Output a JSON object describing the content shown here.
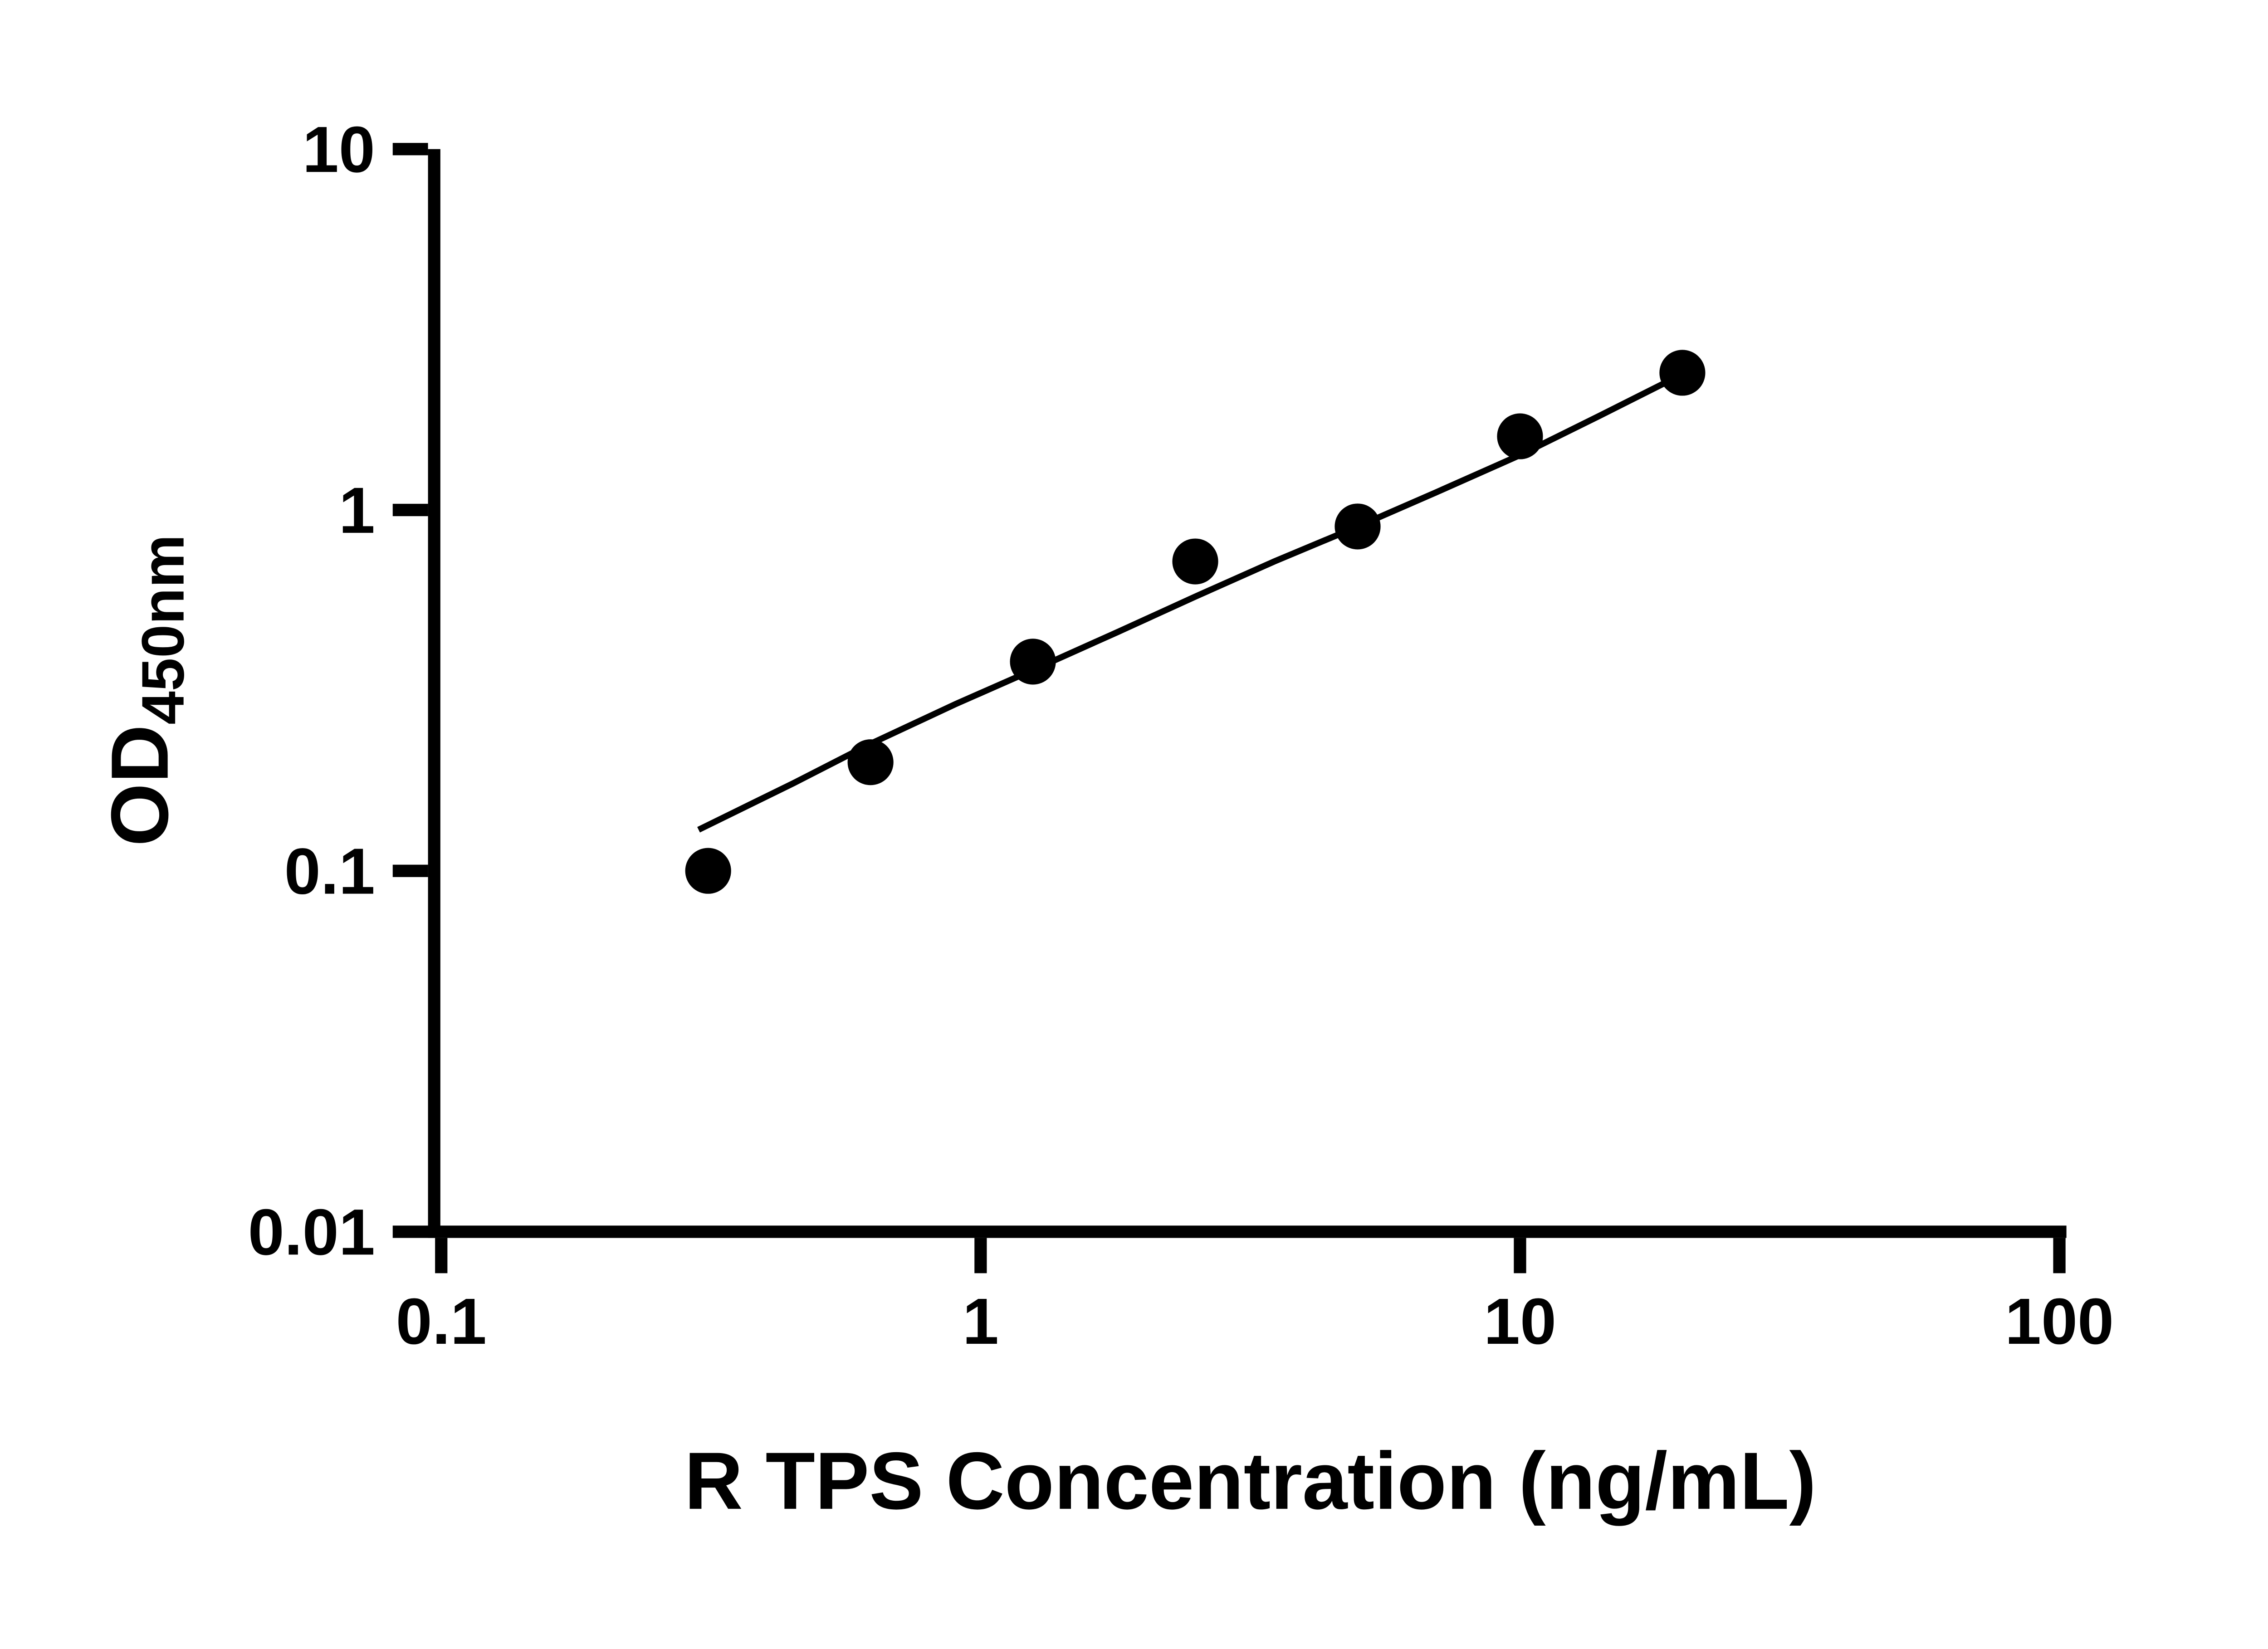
{
  "chart_data": {
    "type": "scatter",
    "title": "",
    "xlabel": "R TPS Concentration (ng/mL)",
    "ylabel": "OD",
    "ylabel_subscript": "450nm",
    "x_scale": "log",
    "y_scale": "log",
    "xlim": [
      0.1,
      100
    ],
    "ylim": [
      0.01,
      10
    ],
    "x_ticks": [
      0.1,
      1,
      10,
      100
    ],
    "x_tick_labels": [
      "0.1",
      "1",
      "10",
      "100"
    ],
    "y_ticks": [
      0.01,
      0.1,
      1,
      10
    ],
    "y_tick_labels": [
      "0.01",
      "0.1",
      "1",
      "10"
    ],
    "grid": false,
    "legend": false,
    "marker_color": "#000000",
    "line_color": "#000000",
    "axis_color": "#000000",
    "background": "#ffffff",
    "series": [
      {
        "name": "standard-curve-points",
        "type": "scatter",
        "x": [
          0.3125,
          0.625,
          1.25,
          2.5,
          5,
          10,
          20
        ],
        "y": [
          0.1,
          0.2,
          0.38,
          0.72,
          0.9,
          1.6,
          2.4
        ]
      },
      {
        "name": "fit-line",
        "type": "line",
        "x": [
          0.3,
          0.45,
          0.625,
          0.9,
          1.25,
          1.8,
          2.5,
          3.5,
          5,
          7,
          10,
          14,
          20
        ],
        "y": [
          0.13,
          0.175,
          0.225,
          0.29,
          0.36,
          0.46,
          0.575,
          0.72,
          0.9,
          1.12,
          1.42,
          1.82,
          2.38
        ]
      }
    ]
  }
}
